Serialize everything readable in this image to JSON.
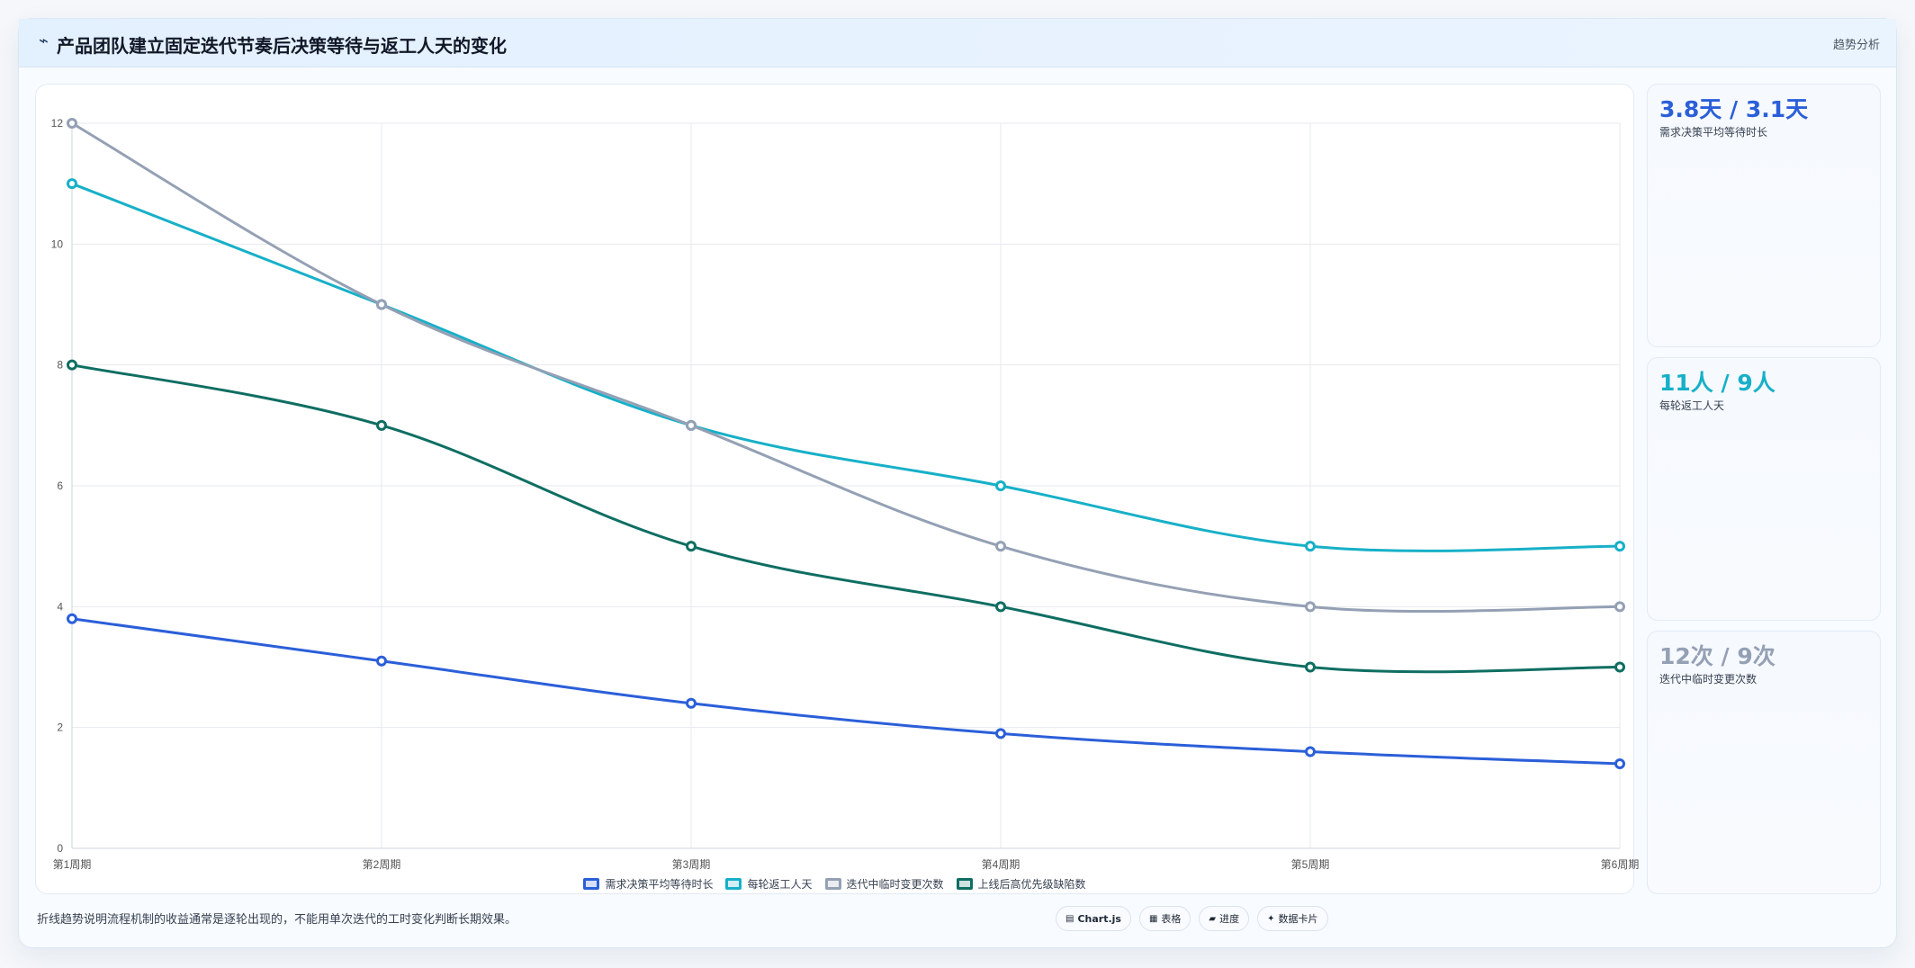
{
  "header": {
    "icon": "trend-line-icon",
    "title": "产品团队建立固定迭代节奏后决策等待与返工人天的变化",
    "tag": "趋势分析"
  },
  "chart_data": {
    "type": "line",
    "categories": [
      "第1周期",
      "第2周期",
      "第3周期",
      "第4周期",
      "第5周期",
      "第6周期"
    ],
    "ylim": [
      0,
      12
    ],
    "yticks": [
      0,
      2,
      4,
      6,
      8,
      10,
      12
    ],
    "grid": true,
    "legend_position": "bottom",
    "series": [
      {
        "name": "需求决策平均等待时长",
        "color": "#2b5fd9",
        "values": [
          3.8,
          3.1,
          2.4,
          1.9,
          1.6,
          1.4
        ]
      },
      {
        "name": "每轮返工人天",
        "color": "#17b0c8",
        "values": [
          11,
          9,
          7,
          6,
          5,
          5
        ]
      },
      {
        "name": "迭代中临时变更次数",
        "color": "#94a0b4",
        "values": [
          12,
          9,
          7,
          5,
          4,
          4
        ]
      },
      {
        "name": "上线后高优先级缺陷数",
        "color": "#0f6e62",
        "values": [
          8,
          7,
          5,
          4,
          3,
          3
        ]
      }
    ]
  },
  "kpis": [
    {
      "value": "3.8天 / 3.1天",
      "label": "需求决策平均等待时长",
      "color": "#2b5fd9"
    },
    {
      "value": "11人 / 9人",
      "label": "每轮返工人天",
      "color": "#17b0c8"
    },
    {
      "value": "12次 / 9次",
      "label": "迭代中临时变更次数",
      "color": "#94a0b4"
    }
  ],
  "footer": {
    "note": "折线趋势说明流程机制的收益通常是逐轮出现的，不能用单次迭代的工时变化判断长期效果。",
    "pills": [
      {
        "icon": "chart-icon",
        "glyph": "▤",
        "label": "Chart.js"
      },
      {
        "icon": "table-icon",
        "glyph": "▦",
        "label": "表格"
      },
      {
        "icon": "progress-icon",
        "glyph": "▰",
        "label": "进度"
      },
      {
        "icon": "card-icon",
        "glyph": "✦",
        "label": "数据卡片"
      }
    ]
  }
}
